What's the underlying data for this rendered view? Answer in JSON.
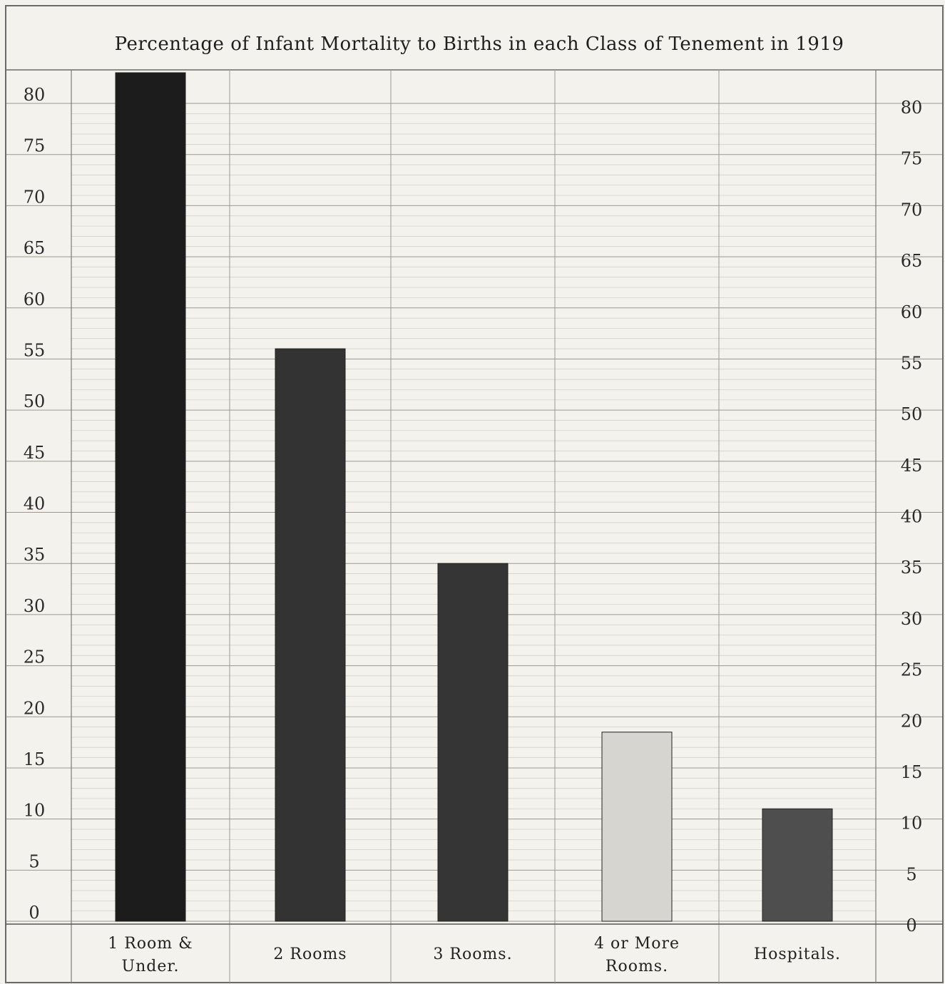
{
  "chart_data": {
    "type": "bar",
    "title": "Percentage of Infant Mortality to Births in each Class of Tenement in 1919",
    "xlabel": "",
    "ylabel": "",
    "ylim": [
      0,
      80
    ],
    "yticks": [
      "0",
      "5",
      "10",
      "15",
      "20",
      "25",
      "30",
      "35",
      "40",
      "45",
      "50",
      "55",
      "60",
      "65",
      "70",
      "75",
      "80"
    ],
    "categories": [
      [
        "1 Room &",
        "Under."
      ],
      [
        "2 Rooms"
      ],
      [
        "3 Rooms."
      ],
      [
        "4 or More",
        "Rooms."
      ],
      [
        "Hospitals."
      ]
    ],
    "values": [
      83,
      56,
      35,
      18.5,
      11
    ],
    "colors": [
      "#1c1c1c",
      "#333333",
      "#353535",
      "#d6d5d0",
      "#4e4e4e"
    ],
    "grid": true,
    "right_axis_ticks": true
  }
}
